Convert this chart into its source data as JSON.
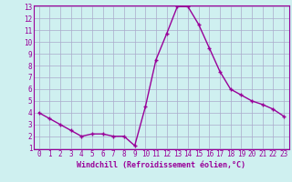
{
  "x": [
    0,
    1,
    2,
    3,
    4,
    5,
    6,
    7,
    8,
    9,
    10,
    11,
    12,
    13,
    14,
    15,
    16,
    17,
    18,
    19,
    20,
    21,
    22,
    23
  ],
  "y": [
    4.0,
    3.5,
    3.0,
    2.5,
    2.0,
    2.2,
    2.2,
    2.0,
    2.0,
    1.2,
    4.5,
    8.5,
    10.7,
    13.0,
    13.0,
    11.5,
    9.5,
    7.5,
    6.0,
    5.5,
    5.0,
    4.7,
    4.3,
    3.7
  ],
  "line_color": "#990099",
  "marker": "+",
  "markersize": 3,
  "linewidth": 1.0,
  "bg_color": "#cff0f0",
  "grid_color": "#aaaacc",
  "xlabel": "Windchill (Refroidissement éolien,°C)",
  "xlabel_color": "#990099",
  "tick_color": "#990099",
  "ylim": [
    1,
    13
  ],
  "xlim": [
    -0.5,
    23.5
  ],
  "yticks": [
    1,
    2,
    3,
    4,
    5,
    6,
    7,
    8,
    9,
    10,
    11,
    12,
    13
  ],
  "xticks": [
    0,
    1,
    2,
    3,
    4,
    5,
    6,
    7,
    8,
    9,
    10,
    11,
    12,
    13,
    14,
    15,
    16,
    17,
    18,
    19,
    20,
    21,
    22,
    23
  ],
  "spine_color": "#990099",
  "tick_fontsize": 5.5,
  "xlabel_fontsize": 6.0
}
